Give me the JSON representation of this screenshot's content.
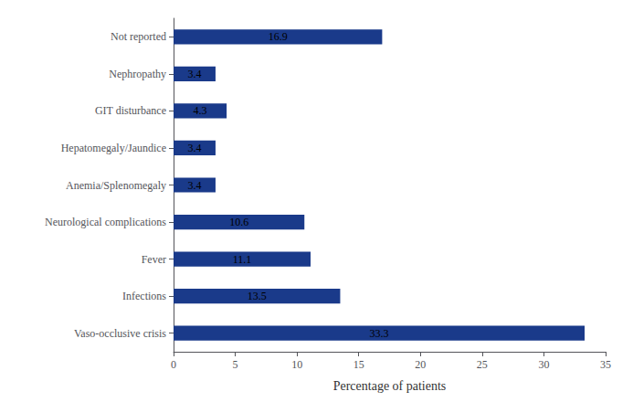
{
  "chart_data": {
    "type": "bar",
    "orientation": "horizontal",
    "categories": [
      "Vaso-occlusive crisis",
      "Infections",
      "Fever",
      "Neurological complications",
      "Anemia/Splenomegaly",
      "Hepatomegaly/Jaundice",
      "GIT disturbance",
      "Nephropathy",
      "Not reported"
    ],
    "values": [
      33.3,
      13.5,
      11.1,
      10.6,
      3.4,
      3.4,
      4.3,
      3.4,
      16.9
    ],
    "color": "#1a3a8a",
    "xlabel": "Percentage of patients",
    "xlim": [
      0,
      35
    ],
    "xticks": [
      0,
      5,
      10,
      15,
      20,
      25,
      30,
      35
    ],
    "grid": false,
    "data_labels": true
  }
}
